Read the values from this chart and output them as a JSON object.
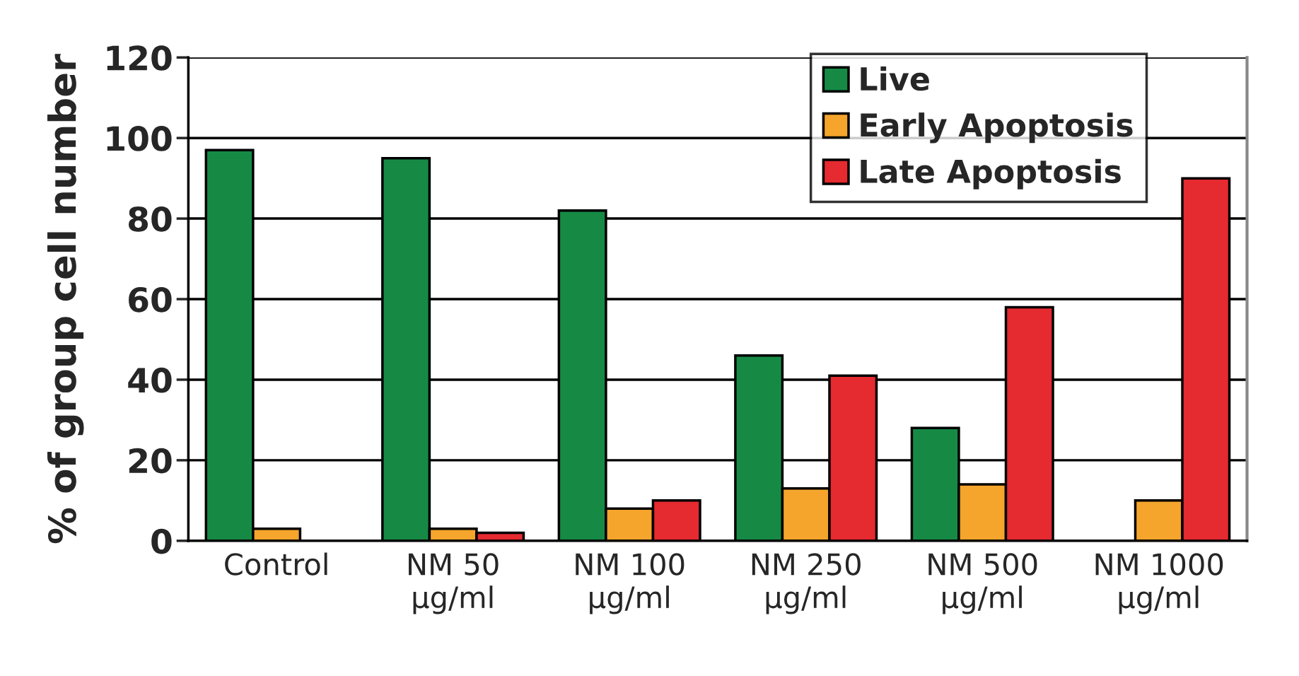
{
  "chart_data": {
    "type": "bar",
    "ylabel": "% of group cell number",
    "categories": [
      "Control",
      "NM 50\nµg/ml",
      "NM 100\nµg/ml",
      "NM 250\nµg/ml",
      "NM 500\nµg/ml",
      "NM 1000\nµg/ml"
    ],
    "series": [
      {
        "name": "Live",
        "color": "#168a45",
        "values": [
          97,
          95,
          82,
          46,
          28,
          null
        ]
      },
      {
        "name": "Early Apoptosis",
        "color": "#f5a52c",
        "values": [
          3,
          3,
          8,
          13,
          14,
          10
        ]
      },
      {
        "name": "Late Apoptosis",
        "color": "#e52a30",
        "values": [
          null,
          2,
          10,
          41,
          58,
          90
        ]
      }
    ],
    "ylim": [
      0,
      120
    ],
    "yticks": [
      0,
      20,
      40,
      60,
      80,
      100,
      120
    ],
    "grid": "y",
    "legend": "top right"
  }
}
